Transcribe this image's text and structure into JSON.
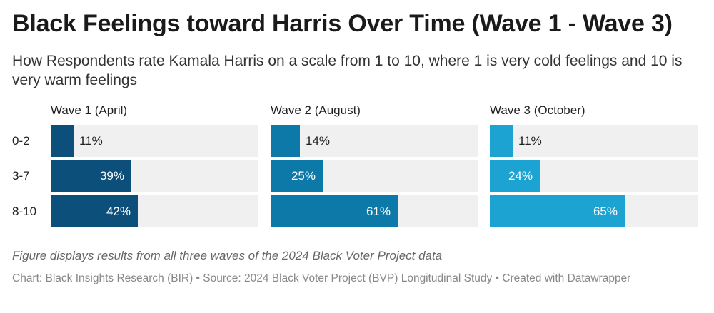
{
  "title": "Black Feelings toward Harris Over Time (Wave 1 - Wave 3)",
  "subtitle": "How Respondents rate Kamala Harris on a scale from 1 to 10, where 1 is very cold feelings and 10 is very warm feelings",
  "chart_data": {
    "type": "bar",
    "orientation": "horizontal",
    "layout": "small-multiples",
    "categories": [
      "0-2",
      "3-7",
      "8-10"
    ],
    "xlim": [
      0,
      100
    ],
    "unit": "%",
    "series": [
      {
        "name": "Wave 1 (April)",
        "values": [
          11,
          39,
          42
        ],
        "labels": [
          "11%",
          "39%",
          "42%"
        ],
        "color": "#0c4f7a"
      },
      {
        "name": "Wave 2 (August)",
        "values": [
          14,
          25,
          61
        ],
        "labels": [
          "14%",
          "25%",
          "61%"
        ],
        "color": "#0c79a8"
      },
      {
        "name": "Wave 3 (October)",
        "values": [
          11,
          24,
          65
        ],
        "labels": [
          "11%",
          "24%",
          "65%"
        ],
        "color": "#1ca3d2"
      }
    ],
    "background_color": "#f0f0f0"
  },
  "note": "Figure displays results from all three waves of the 2024 Black Voter Project data",
  "footer": "Chart: Black Insights Research (BIR) • Source: 2024 Black Voter Project (BVP) Longitudinal Study • Created with Datawrapper"
}
